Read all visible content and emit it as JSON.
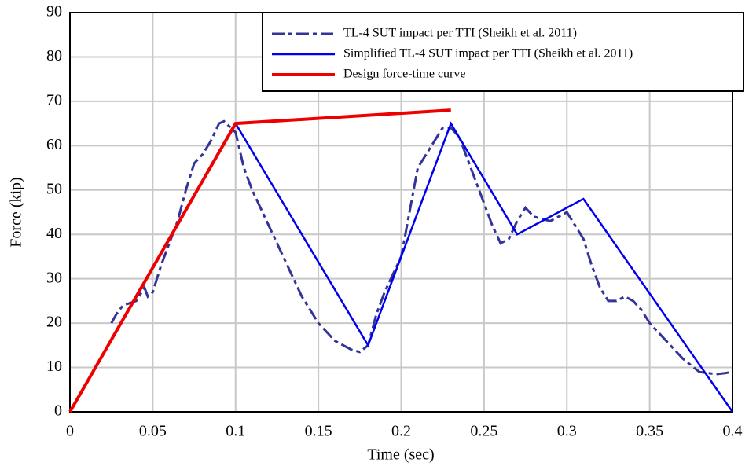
{
  "chart_data": {
    "type": "line",
    "xlabel": "Time (sec)",
    "ylabel": "Force (kip)",
    "xlim": [
      0,
      0.4
    ],
    "ylim": [
      0,
      90
    ],
    "xticks": [
      0,
      0.05,
      0.1,
      0.15,
      0.2,
      0.25,
      0.3,
      0.35,
      0.4
    ],
    "yticks": [
      0,
      10,
      20,
      30,
      40,
      50,
      60,
      70,
      80,
      90
    ],
    "grid": true,
    "legend": "upper right",
    "series": [
      {
        "name": "TL-4 SUT impact per TTI (Sheikh et al. 2011)",
        "color": "#333399",
        "style": "dashdot",
        "width": 3,
        "x": [
          0.025,
          0.028,
          0.032,
          0.04,
          0.045,
          0.047,
          0.05,
          0.055,
          0.06,
          0.065,
          0.07,
          0.075,
          0.08,
          0.085,
          0.09,
          0.093,
          0.1,
          0.105,
          0.11,
          0.115,
          0.12,
          0.13,
          0.14,
          0.15,
          0.16,
          0.17,
          0.175,
          0.18,
          0.185,
          0.19,
          0.2,
          0.205,
          0.21,
          0.215,
          0.22,
          0.225,
          0.23,
          0.235,
          0.24,
          0.245,
          0.25,
          0.255,
          0.26,
          0.265,
          0.27,
          0.275,
          0.28,
          0.29,
          0.3,
          0.305,
          0.31,
          0.315,
          0.32,
          0.325,
          0.33,
          0.335,
          0.34,
          0.345,
          0.35,
          0.36,
          0.37,
          0.38,
          0.39,
          0.395,
          0.4
        ],
        "values": [
          20,
          22,
          24,
          25,
          28,
          26,
          27,
          33,
          38,
          43,
          50,
          56,
          58,
          61,
          65,
          65.5,
          63,
          55,
          50,
          46,
          42,
          34,
          26,
          20,
          16,
          14,
          13.5,
          15,
          22,
          27,
          35,
          45,
          55,
          58,
          61,
          64,
          64,
          62,
          57,
          52,
          47,
          42,
          38,
          39,
          43,
          46,
          44,
          43,
          45,
          42,
          39,
          33,
          28,
          25,
          25,
          26,
          25,
          23,
          20,
          16,
          12,
          9,
          8.5,
          8.7,
          9
        ]
      },
      {
        "name": "Simplified TL-4 SUT impact per TTI (Sheikh et al. 2011)",
        "color": "#0000ee",
        "style": "solid",
        "width": 2.5,
        "x": [
          0.1,
          0.18,
          0.23,
          0.27,
          0.31,
          0.4
        ],
        "values": [
          65,
          15,
          65,
          40,
          48,
          0
        ]
      },
      {
        "name": "Design force-time curve",
        "color": "#ee0000",
        "style": "solid",
        "width": 4,
        "x": [
          0,
          0.1,
          0.23
        ],
        "values": [
          0,
          65,
          68
        ]
      }
    ]
  }
}
